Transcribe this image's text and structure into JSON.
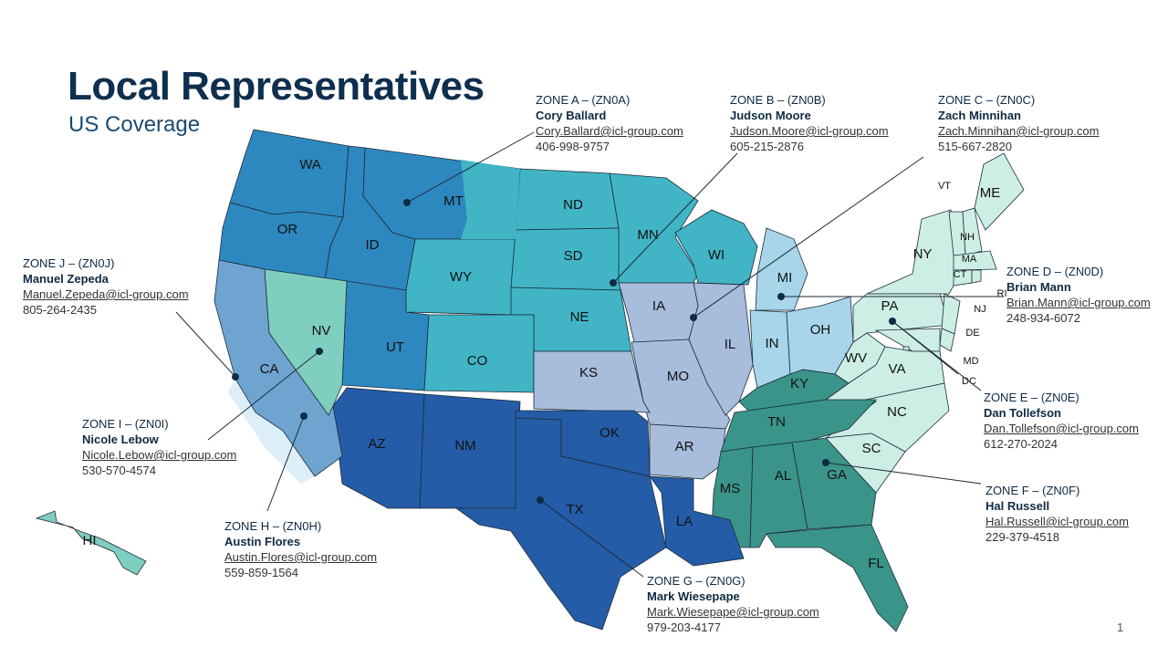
{
  "title": "Local Representatives",
  "subtitle": "US Coverage",
  "page_number": "1",
  "zone_colors": {
    "A": "#2e88c0",
    "B": "#41b5c5",
    "C1": "#a8bcdc",
    "C2": "#a8d5ea",
    "D": "#cdeee5",
    "F": "#3a9489",
    "G": "#255ca7",
    "H": "#6fa4d1",
    "J": "#7fcfc0"
  },
  "states": [
    {
      "abbr": "WA",
      "zone": "A"
    },
    {
      "abbr": "OR",
      "zone": "A"
    },
    {
      "abbr": "ID",
      "zone": "A"
    },
    {
      "abbr": "MT",
      "zone": "A"
    },
    {
      "abbr": "UT",
      "zone": "A"
    },
    {
      "abbr": "WY",
      "zone": "B"
    },
    {
      "abbr": "ND",
      "zone": "B"
    },
    {
      "abbr": "SD",
      "zone": "B"
    },
    {
      "abbr": "NE",
      "zone": "B"
    },
    {
      "abbr": "CO",
      "zone": "B"
    },
    {
      "abbr": "MN",
      "zone": "B"
    },
    {
      "abbr": "WI",
      "zone": "B"
    },
    {
      "abbr": "IA",
      "zone": "C1"
    },
    {
      "abbr": "MO",
      "zone": "C1"
    },
    {
      "abbr": "IL",
      "zone": "C1"
    },
    {
      "abbr": "KS",
      "zone": "C1"
    },
    {
      "abbr": "AR",
      "zone": "C1"
    },
    {
      "abbr": "MI",
      "zone": "C2"
    },
    {
      "abbr": "IN",
      "zone": "C2"
    },
    {
      "abbr": "OH",
      "zone": "C2"
    },
    {
      "abbr": "NY",
      "zone": "D"
    },
    {
      "abbr": "PA",
      "zone": "D"
    },
    {
      "abbr": "VT",
      "zone": "D"
    },
    {
      "abbr": "NH",
      "zone": "D"
    },
    {
      "abbr": "ME",
      "zone": "D"
    },
    {
      "abbr": "MA",
      "zone": "D"
    },
    {
      "abbr": "CT",
      "zone": "D"
    },
    {
      "abbr": "RI",
      "zone": "D"
    },
    {
      "abbr": "NJ",
      "zone": "D"
    },
    {
      "abbr": "DE",
      "zone": "D"
    },
    {
      "abbr": "MD",
      "zone": "D"
    },
    {
      "abbr": "DC",
      "zone": "D"
    },
    {
      "abbr": "WV",
      "zone": "D"
    },
    {
      "abbr": "VA",
      "zone": "D"
    },
    {
      "abbr": "NC",
      "zone": "D"
    },
    {
      "abbr": "SC",
      "zone": "D"
    },
    {
      "abbr": "KY",
      "zone": "F"
    },
    {
      "abbr": "TN",
      "zone": "F"
    },
    {
      "abbr": "MS",
      "zone": "F"
    },
    {
      "abbr": "AL",
      "zone": "F"
    },
    {
      "abbr": "GA",
      "zone": "F"
    },
    {
      "abbr": "FL",
      "zone": "F"
    },
    {
      "abbr": "AZ",
      "zone": "G"
    },
    {
      "abbr": "NM",
      "zone": "G"
    },
    {
      "abbr": "OK",
      "zone": "G"
    },
    {
      "abbr": "TX",
      "zone": "G"
    },
    {
      "abbr": "LA",
      "zone": "G"
    },
    {
      "abbr": "CA",
      "zone": "H"
    },
    {
      "abbr": "NV",
      "zone": "J"
    },
    {
      "abbr": "HI",
      "zone": "J"
    }
  ],
  "zones": [
    {
      "id": "A",
      "heading": "ZONE A – (ZN0A)",
      "name": "Cory Ballard",
      "email": "Cory.Ballard@icl-group.com",
      "phone": "406-998-9757"
    },
    {
      "id": "B",
      "heading": "ZONE B – (ZN0B)",
      "name": "Judson Moore",
      "email": "Judson.Moore@icl-group.com",
      "phone": "605-215-2876"
    },
    {
      "id": "C",
      "heading": "ZONE C – (ZN0C)",
      "name": "Zach Minnihan",
      "email": "Zach.Minnihan@icl-group.com",
      "phone": "515-667-2820"
    },
    {
      "id": "D",
      "heading": "ZONE D – (ZN0D)",
      "name": "Brian Mann",
      "email": "Brian.Mann@icl-group.com",
      "phone": "248-934-6072"
    },
    {
      "id": "E",
      "heading": "ZONE E – (ZN0E)",
      "name": "Dan Tollefson",
      "email": "Dan.Tollefson@icl-group.com",
      "phone": "612-270-2024"
    },
    {
      "id": "F",
      "heading": "ZONE F – (ZN0F)",
      "name": "Hal Russell",
      "email": "Hal.Russell@icl-group.com",
      "phone": "229-379-4518"
    },
    {
      "id": "G",
      "heading": "ZONE G – (ZN0G)",
      "name": "Mark Wiesepape",
      "email": "Mark.Wiesepape@icl-group.com",
      "phone": "979-203-4177"
    },
    {
      "id": "H",
      "heading": "ZONE H – (ZN0H)",
      "name": "Austin Flores",
      "email": "Austin.Flores@icl-group.com",
      "phone": "559-859-1564"
    },
    {
      "id": "I",
      "heading": "ZONE I – (ZN0I)",
      "name": "Nicole Lebow",
      "email": "Nicole.Lebow@icl-group.com",
      "phone": "530-570-4574"
    },
    {
      "id": "J",
      "heading": "ZONE J – (ZN0J)",
      "name": "Manuel Zepeda",
      "email": "Manuel.Zepeda@icl-group.com",
      "phone": "805-264-2435"
    }
  ]
}
